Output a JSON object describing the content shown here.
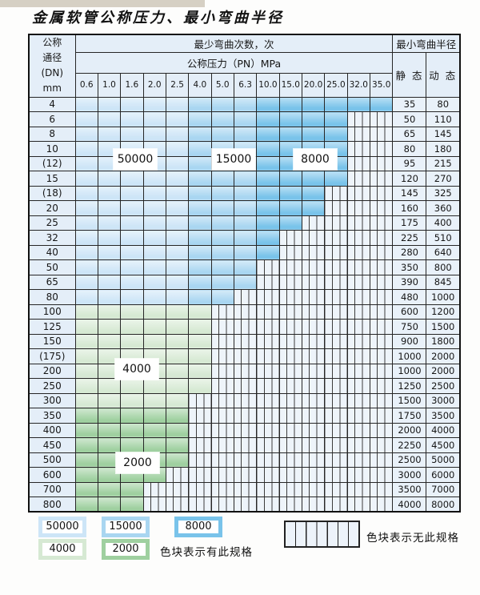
{
  "title": "金属软管公称压力、最小弯曲半径",
  "table": {
    "dn_header_lines": [
      "公称",
      "通径",
      "(DN)",
      "mm"
    ],
    "bend_cycles_header": "最少弯曲次数，次",
    "pressure_header": "公称压力（PN）MPa",
    "radius_header": "最小弯曲半径",
    "static_header": "静 态",
    "dynamic_header": "动 态",
    "pressure_columns": [
      "0.6",
      "1.0",
      "1.6",
      "2.0",
      "2.5",
      "4.0",
      "5.0",
      "6.3",
      "10.0",
      "15.0",
      "20.0",
      "25.0",
      "32.0",
      "35.0"
    ],
    "rows": [
      {
        "dn": "4",
        "zone": "blue",
        "colored": 14,
        "static": "35",
        "dynamic": "80"
      },
      {
        "dn": "6",
        "zone": "blue",
        "colored": 12,
        "static": "50",
        "dynamic": "110"
      },
      {
        "dn": "8",
        "zone": "blue",
        "colored": 12,
        "static": "65",
        "dynamic": "145"
      },
      {
        "dn": "10",
        "zone": "blue",
        "colored": 12,
        "static": "80",
        "dynamic": "180"
      },
      {
        "dn": "(12)",
        "zone": "blue",
        "colored": 12,
        "static": "95",
        "dynamic": "215"
      },
      {
        "dn": "15",
        "zone": "blue",
        "colored": 12,
        "static": "120",
        "dynamic": "270"
      },
      {
        "dn": "(18)",
        "zone": "blue",
        "colored": 11,
        "static": "145",
        "dynamic": "325"
      },
      {
        "dn": "20",
        "zone": "blue",
        "colored": 11,
        "static": "160",
        "dynamic": "360"
      },
      {
        "dn": "25",
        "zone": "blue",
        "colored": 10,
        "static": "175",
        "dynamic": "400"
      },
      {
        "dn": "32",
        "zone": "blue",
        "colored": 9,
        "static": "225",
        "dynamic": "510"
      },
      {
        "dn": "40",
        "zone": "blue",
        "colored": 9,
        "static": "280",
        "dynamic": "640"
      },
      {
        "dn": "50",
        "zone": "blue",
        "colored": 8,
        "static": "350",
        "dynamic": "800"
      },
      {
        "dn": "65",
        "zone": "blue",
        "colored": 8,
        "static": "390",
        "dynamic": "845"
      },
      {
        "dn": "80",
        "zone": "blue",
        "colored": 7,
        "static": "480",
        "dynamic": "1000"
      },
      {
        "dn": "100",
        "zone": "z4000",
        "colored": 6,
        "static": "600",
        "dynamic": "1200"
      },
      {
        "dn": "125",
        "zone": "z4000",
        "colored": 6,
        "static": "750",
        "dynamic": "1500"
      },
      {
        "dn": "150",
        "zone": "z4000",
        "colored": 6,
        "static": "900",
        "dynamic": "1800"
      },
      {
        "dn": "(175)",
        "zone": "z4000",
        "colored": 6,
        "static": "1000",
        "dynamic": "2000"
      },
      {
        "dn": "200",
        "zone": "z4000",
        "colored": 6,
        "static": "1000",
        "dynamic": "2000"
      },
      {
        "dn": "250",
        "zone": "z4000",
        "colored": 6,
        "static": "1250",
        "dynamic": "2500"
      },
      {
        "dn": "300",
        "zone": "z4000",
        "colored": 5,
        "static": "1500",
        "dynamic": "3000"
      },
      {
        "dn": "350",
        "zone": "z2000",
        "colored": 5,
        "static": "1750",
        "dynamic": "3500"
      },
      {
        "dn": "400",
        "zone": "z2000",
        "colored": 5,
        "static": "2000",
        "dynamic": "4000"
      },
      {
        "dn": "450",
        "zone": "z2000",
        "colored": 5,
        "static": "2250",
        "dynamic": "4500"
      },
      {
        "dn": "500",
        "zone": "z2000",
        "colored": 5,
        "static": "2500",
        "dynamic": "5000"
      },
      {
        "dn": "600",
        "zone": "z2000",
        "colored": 4,
        "static": "3000",
        "dynamic": "6000"
      },
      {
        "dn": "700",
        "zone": "z2000",
        "colored": 3,
        "static": "3500",
        "dynamic": "7000"
      },
      {
        "dn": "800",
        "zone": "z2000",
        "colored": 3,
        "static": "4000",
        "dynamic": "8000"
      }
    ]
  },
  "zones": {
    "z50000": {
      "label": "50000",
      "color": "#cde5f7"
    },
    "z15000": {
      "label": "15000",
      "color": "#a9d6f1"
    },
    "z8000": {
      "label": "8000",
      "color": "#79c3ea"
    },
    "z4000": {
      "label": "4000",
      "color": "#d6e9d3"
    },
    "z2000": {
      "label": "2000",
      "color": "#9fd0a0"
    }
  },
  "zone_labels": [
    "50000",
    "15000",
    "8000",
    "4000",
    "2000"
  ],
  "legend": {
    "swatches": [
      "50000",
      "15000",
      "8000",
      "4000",
      "2000"
    ],
    "has_spec_text": "色块表示有此规格",
    "no_spec_text": "色块表示无此规格"
  }
}
